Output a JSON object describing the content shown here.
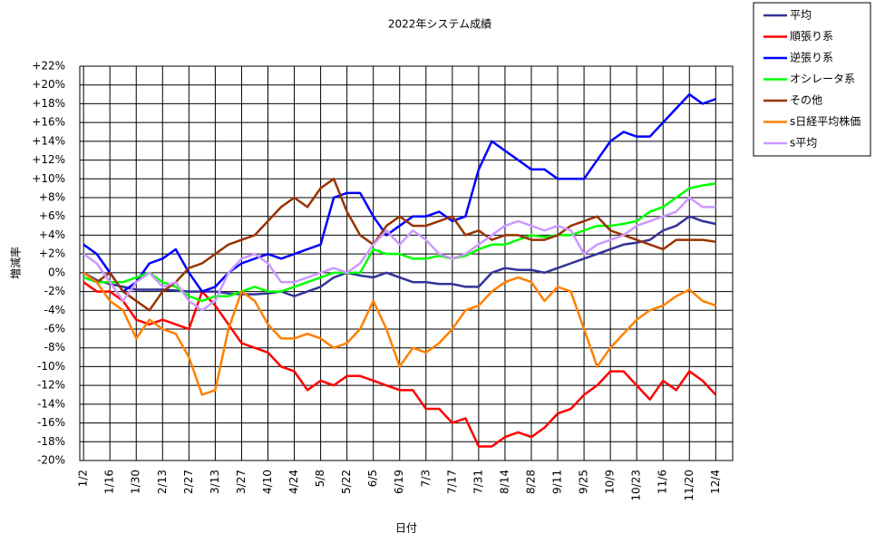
{
  "chart_data": {
    "type": "line",
    "title": "2022年システム成績",
    "xlabel": "日付",
    "ylabel": "増減率",
    "x": [
      2,
      9,
      16,
      23,
      30,
      37,
      44,
      51,
      58,
      65,
      72,
      79,
      86,
      93,
      100,
      107,
      114,
      121,
      128,
      135,
      142,
      149,
      156,
      163,
      170,
      177,
      184,
      191,
      198,
      205,
      212,
      219,
      226,
      233,
      240,
      247,
      254,
      261,
      268,
      275,
      282,
      289,
      296,
      303,
      310,
      317,
      324,
      331,
      338
    ],
    "xlim": [
      0,
      347
    ],
    "xticks": [
      {
        "value": 2,
        "label": "1/2"
      },
      {
        "value": 16,
        "label": "1/16"
      },
      {
        "value": 30,
        "label": "1/30"
      },
      {
        "value": 44,
        "label": "2/13"
      },
      {
        "value": 58,
        "label": "2/27"
      },
      {
        "value": 72,
        "label": "3/13"
      },
      {
        "value": 86,
        "label": "3/27"
      },
      {
        "value": 100,
        "label": "4/10"
      },
      {
        "value": 114,
        "label": "4/24"
      },
      {
        "value": 128,
        "label": "5/8"
      },
      {
        "value": 142,
        "label": "5/22"
      },
      {
        "value": 156,
        "label": "6/5"
      },
      {
        "value": 170,
        "label": "6/19"
      },
      {
        "value": 184,
        "label": "7/3"
      },
      {
        "value": 198,
        "label": "7/17"
      },
      {
        "value": 212,
        "label": "7/31"
      },
      {
        "value": 226,
        "label": "8/14"
      },
      {
        "value": 240,
        "label": "8/28"
      },
      {
        "value": 254,
        "label": "9/11"
      },
      {
        "value": 268,
        "label": "9/25"
      },
      {
        "value": 282,
        "label": "10/9"
      },
      {
        "value": 296,
        "label": "10/23"
      },
      {
        "value": 310,
        "label": "11/6"
      },
      {
        "value": 324,
        "label": "11/20"
      },
      {
        "value": 338,
        "label": "12/4"
      }
    ],
    "ylim": [
      -20,
      22
    ],
    "yticks": [
      {
        "value": 22,
        "label": "+22%"
      },
      {
        "value": 20,
        "label": "+20%"
      },
      {
        "value": 18,
        "label": "+18%"
      },
      {
        "value": 16,
        "label": "+16%"
      },
      {
        "value": 14,
        "label": "+14%"
      },
      {
        "value": 12,
        "label": "+12%"
      },
      {
        "value": 10,
        "label": "+10%"
      },
      {
        "value": 8,
        "label": "+8%"
      },
      {
        "value": 6,
        "label": "+6%"
      },
      {
        "value": 4,
        "label": "+4%"
      },
      {
        "value": 2,
        "label": "+2%"
      },
      {
        "value": 0,
        "label": "0%"
      },
      {
        "value": -2,
        "label": "-2%"
      },
      {
        "value": -4,
        "label": "-4%"
      },
      {
        "value": -6,
        "label": "-6%"
      },
      {
        "value": -8,
        "label": "-8%"
      },
      {
        "value": -10,
        "label": "-10%"
      },
      {
        "value": -12,
        "label": "-12%"
      },
      {
        "value": -14,
        "label": "-14%"
      },
      {
        "value": -16,
        "label": "-16%"
      },
      {
        "value": -18,
        "label": "-18%"
      },
      {
        "value": -20,
        "label": "-20%"
      }
    ],
    "grid": true,
    "legend": "right",
    "series": [
      {
        "name": "平均",
        "color": "#333399",
        "values": [
          0,
          -0.8,
          -1.2,
          -1.5,
          -1.8,
          -1.8,
          -1.8,
          -1.9,
          -2,
          -2,
          -2,
          -2.2,
          -2.3,
          -2.3,
          -2.2,
          -2,
          -2.5,
          -2,
          -1.5,
          -0.5,
          0,
          -0.3,
          -0.5,
          0,
          -0.5,
          -1,
          -1,
          -1.2,
          -1.2,
          -1.5,
          -1.5,
          0,
          0.5,
          0.3,
          0.3,
          0,
          0.5,
          1,
          1.5,
          2,
          2.5,
          3,
          3.2,
          3.5,
          4.5,
          5,
          6,
          5.5,
          5.2
        ]
      },
      {
        "name": "順張り系",
        "color": "#ff0000",
        "values": [
          -1,
          -2,
          -2,
          -3,
          -5,
          -5.5,
          -5,
          -5.5,
          -6,
          -2,
          -3.5,
          -5.5,
          -7.5,
          -8,
          -8.5,
          -10,
          -10.5,
          -12.5,
          -11.5,
          -12,
          -11,
          -11,
          -11.5,
          -12,
          -12.5,
          -12.5,
          -14.5,
          -14.5,
          -16,
          -15.5,
          -18.5,
          -18.5,
          -17.5,
          -17,
          -17.5,
          -16.5,
          -15,
          -14.5,
          -13,
          -12,
          -10.5,
          -10.5,
          -12,
          -13.5,
          -11.5,
          -12.5,
          -10.5,
          -11.5,
          -13
        ]
      },
      {
        "name": "逆張り系",
        "color": "#0000ff",
        "values": [
          3,
          2,
          0,
          -2,
          -1,
          1,
          1.5,
          2.5,
          0,
          -2,
          -1.5,
          0,
          1,
          1.5,
          2,
          1.5,
          2,
          2.5,
          3,
          8,
          8.5,
          8.5,
          6,
          4,
          5,
          6,
          6,
          6.5,
          5.5,
          6,
          11,
          14,
          13,
          12,
          11,
          11,
          10,
          10,
          10,
          12,
          14,
          15,
          14.5,
          14.5,
          16,
          17.5,
          19,
          18,
          18.5
        ]
      },
      {
        "name": "オシレータ系",
        "color": "#00ff00",
        "values": [
          -0.5,
          -1,
          -1,
          -1,
          -0.5,
          0,
          -1,
          -1.5,
          -2.5,
          -3,
          -2.5,
          -2.5,
          -2,
          -1.5,
          -2,
          -2,
          -1.5,
          -1,
          -0.5,
          0,
          0,
          0,
          2.5,
          2,
          2,
          1.5,
          1.5,
          1.8,
          1.5,
          1.8,
          2.5,
          3,
          3,
          3.5,
          4,
          3.8,
          4,
          4,
          4.5,
          5,
          5,
          5.2,
          5.5,
          6.5,
          7,
          8,
          9,
          9.3,
          9.5
        ]
      },
      {
        "name": "その他",
        "color": "#993300",
        "values": [
          0,
          -1,
          0,
          -2,
          -3,
          -4,
          -2,
          -1,
          0.5,
          1,
          2,
          3,
          3.5,
          4,
          5.5,
          7,
          8,
          7,
          9,
          10,
          6.5,
          4,
          3,
          5,
          6,
          5,
          5,
          5.5,
          6,
          4,
          4.5,
          3.5,
          4,
          4,
          3.5,
          3.5,
          4,
          5,
          5.5,
          6,
          4.5,
          4,
          3.5,
          3,
          2.5,
          3.5,
          3.5,
          3.5,
          3.3
        ]
      },
      {
        "name": "s日経平均株価",
        "color": "#ff8000",
        "values": [
          0,
          -1,
          -3,
          -4,
          -7,
          -5,
          -6,
          -6.5,
          -9,
          -13,
          -12.5,
          -6,
          -2,
          -3,
          -5.5,
          -7,
          -7,
          -6.5,
          -7,
          -8,
          -7.5,
          -6,
          -3,
          -6,
          -10,
          -8,
          -8.5,
          -7.5,
          -6,
          -4,
          -3.5,
          -2,
          -1,
          -0.5,
          -1,
          -3,
          -1.5,
          -2,
          -6,
          -10,
          -8,
          -6.5,
          -5,
          -4,
          -3.5,
          -2.5,
          -1.8,
          -3,
          -3.5
        ]
      },
      {
        "name": "s平均",
        "color": "#cc99ff",
        "values": [
          2,
          1,
          -1,
          -3,
          -1,
          0,
          -1.5,
          -1,
          -3,
          -4,
          -3,
          0,
          1.5,
          2,
          1,
          -1,
          -1,
          -0.5,
          0,
          0.5,
          0,
          1,
          3,
          4.5,
          3,
          4.5,
          3.5,
          2,
          1.5,
          2,
          3,
          4,
          5,
          5.5,
          5,
          4.5,
          5,
          4.5,
          2,
          3,
          3.5,
          4,
          5,
          5.5,
          6,
          6.5,
          8,
          7,
          7
        ]
      }
    ]
  }
}
